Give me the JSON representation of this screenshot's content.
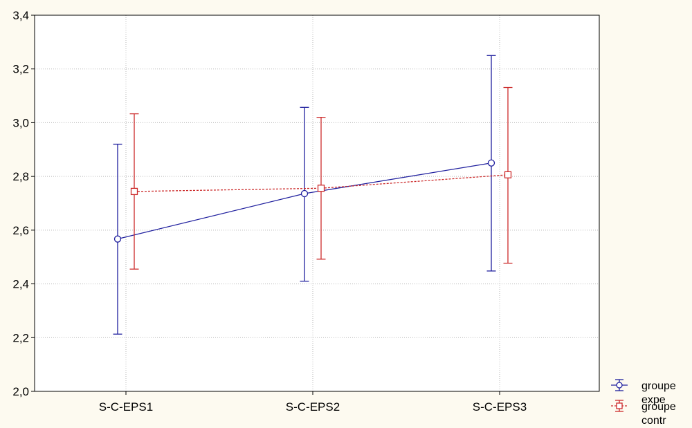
{
  "chart_data": {
    "type": "line",
    "title": "",
    "xlabel": "",
    "ylabel": "",
    "categories": [
      "S-C-EPS1",
      "S-C-EPS2",
      "S-C-EPS3"
    ],
    "ylim": [
      2.0,
      3.4
    ],
    "yticks": [
      "2,0",
      "2,2",
      "2,4",
      "2,6",
      "2,8",
      "3,0",
      "3,2",
      "3,4"
    ],
    "grid": true,
    "legend_position": "bottom-right",
    "series": [
      {
        "name": "groupe expe",
        "legend_lines": [
          "groupe",
          "expe"
        ],
        "color": "#1f1f9e",
        "line_style": "solid",
        "marker": "circle",
        "values": [
          2.567,
          2.736,
          2.85
        ],
        "error_low": [
          2.213,
          2.41,
          2.448
        ],
        "error_high": [
          2.92,
          3.057,
          3.25
        ]
      },
      {
        "name": "groupe contr",
        "legend_lines": [
          "groupe",
          "contr"
        ],
        "color": "#cc2a2a",
        "line_style": "dashed",
        "marker": "square",
        "values": [
          2.744,
          2.756,
          2.806
        ],
        "error_low": [
          2.455,
          2.492,
          2.477
        ],
        "error_high": [
          3.033,
          3.02,
          3.131
        ]
      }
    ]
  }
}
